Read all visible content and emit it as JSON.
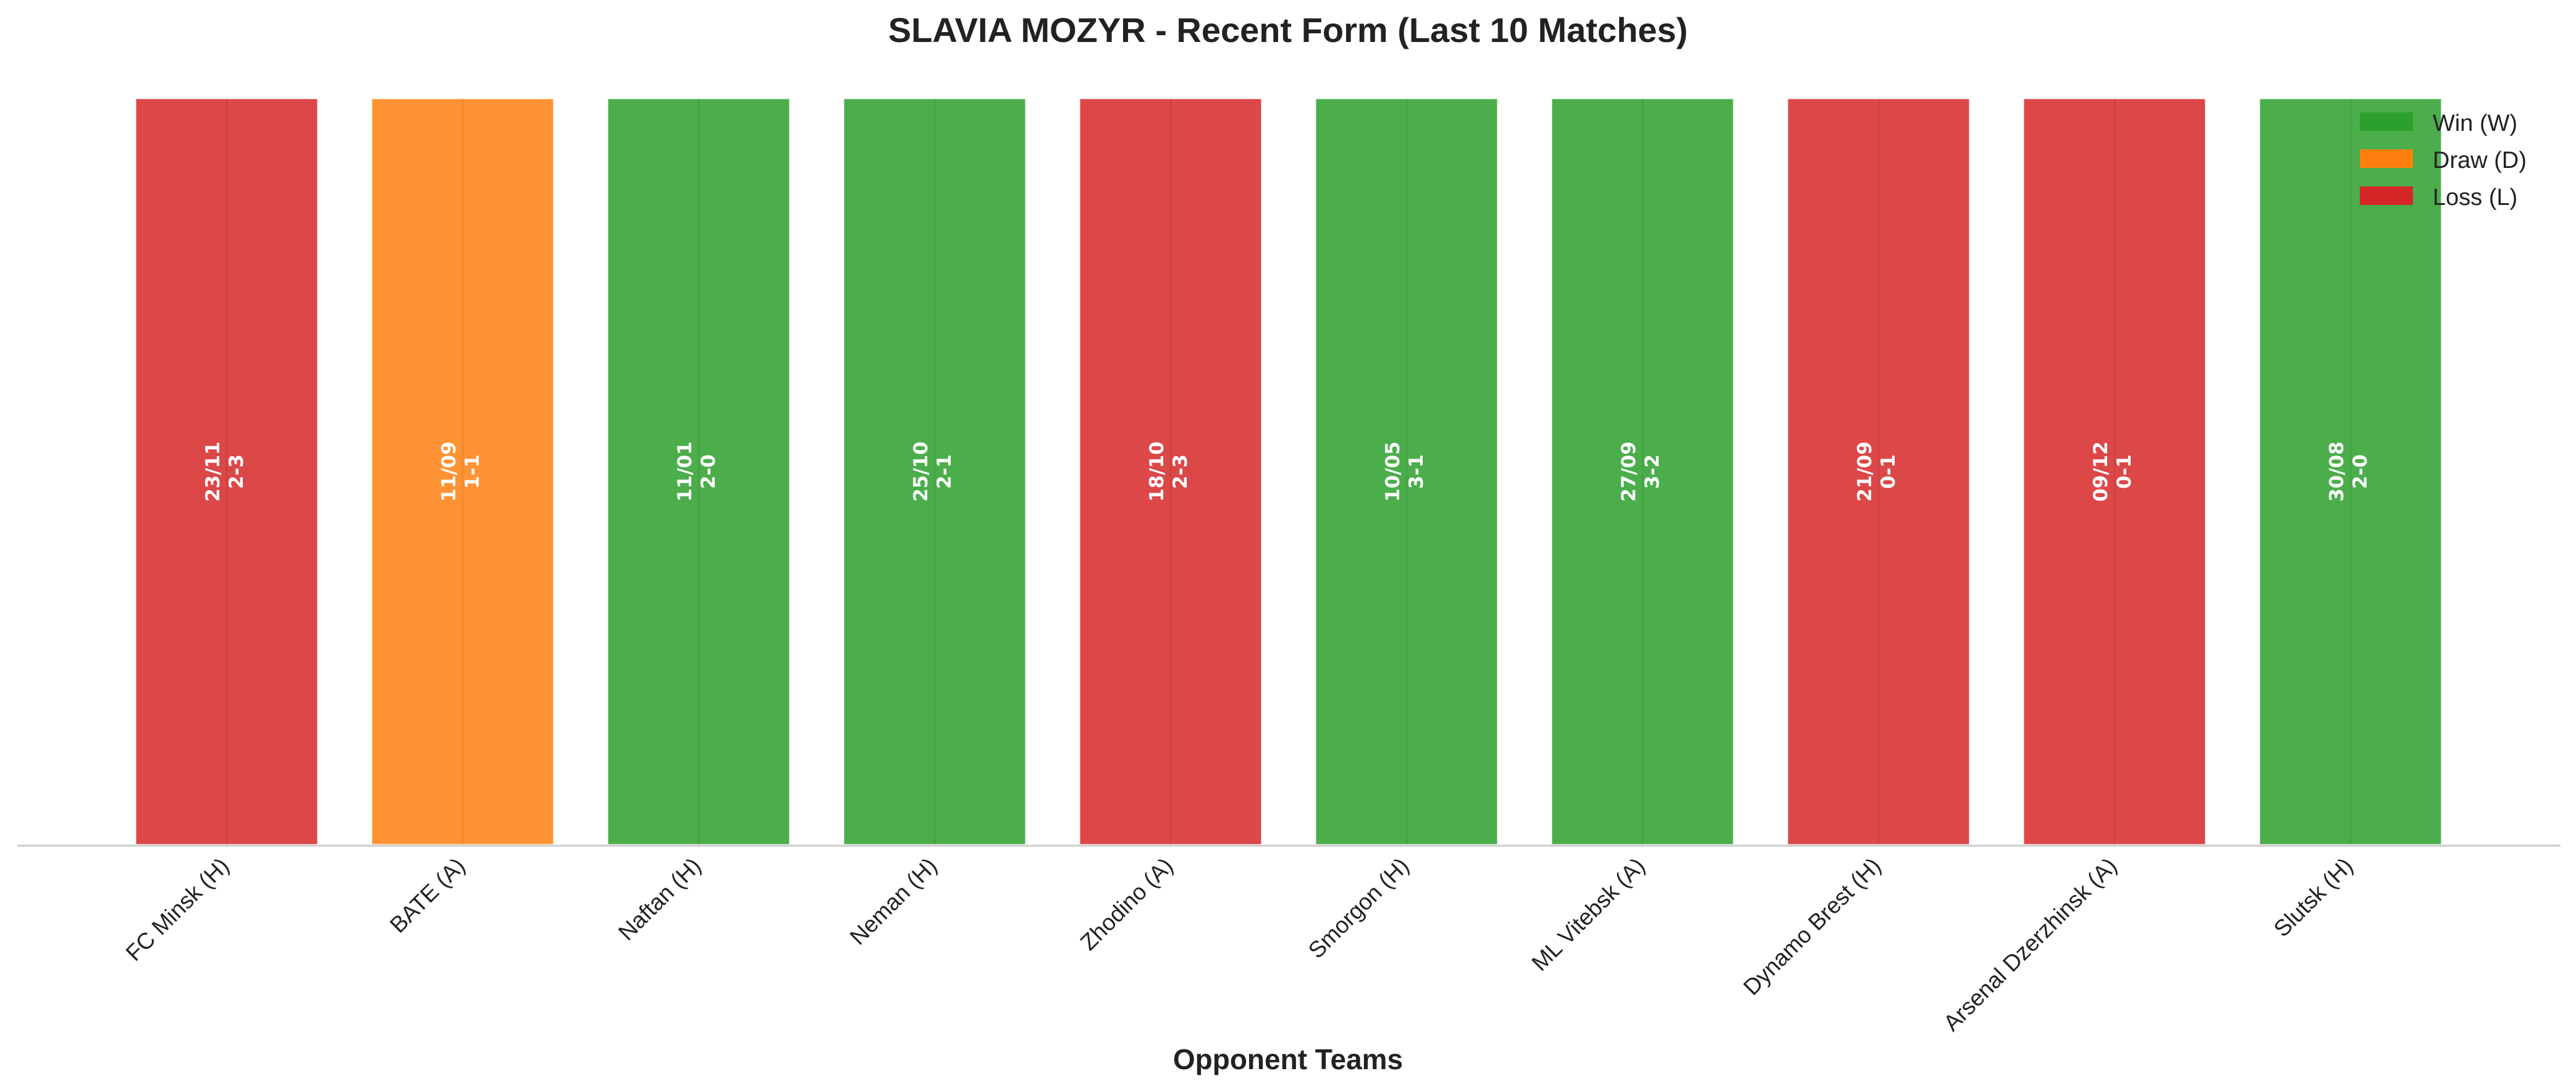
{
  "chart_data": {
    "type": "bar",
    "title": "SLAVIA MOZYR - Recent Form (Last 10 Matches)",
    "xlabel": "Opponent Teams",
    "ylabel": "",
    "ylim": [
      0,
      1
    ],
    "grid": false,
    "legend_position": "top-right",
    "categories": [
      "FC Minsk (H)",
      "BATE (A)",
      "Naftan (H)",
      "Neman (H)",
      "Zhodino (A)",
      "Smorgon (H)",
      "ML Vitebsk (A)",
      "Dynamo Brest (H)",
      "Arsenal Dzerzhinsk (A)",
      "Slutsk (H)"
    ],
    "values": [
      1,
      1,
      1,
      1,
      1,
      1,
      1,
      1,
      1,
      1
    ],
    "results": [
      "L",
      "D",
      "W",
      "W",
      "L",
      "W",
      "W",
      "L",
      "L",
      "W"
    ],
    "dates": [
      "23/11",
      "11/09",
      "11/01",
      "25/10",
      "18/10",
      "10/05",
      "27/09",
      "21/09",
      "09/12",
      "30/08"
    ],
    "scores": [
      "2-3",
      "1-1",
      "2-0",
      "2-1",
      "2-3",
      "3-1",
      "3-2",
      "0-1",
      "0-1",
      "2-0"
    ],
    "legend": [
      {
        "key": "W",
        "label": "Win (W)",
        "color": "#2ca02c"
      },
      {
        "key": "D",
        "label": "Draw (D)",
        "color": "#ff7f0e"
      },
      {
        "key": "L",
        "label": "Loss (L)",
        "color": "#d62728"
      }
    ]
  }
}
